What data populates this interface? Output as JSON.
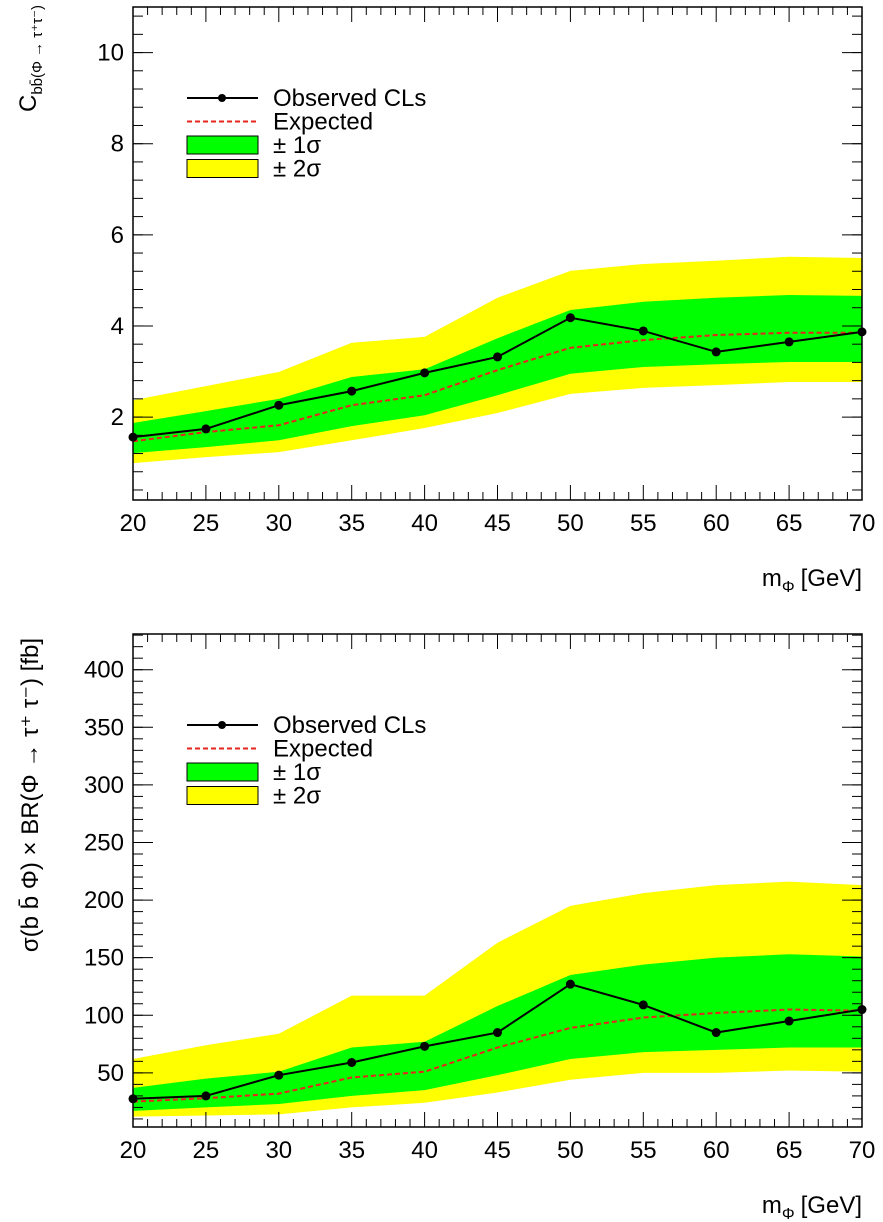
{
  "chart_data": [
    {
      "type": "line",
      "y_label": {
        "main": "C",
        "sub": "bb̄(Φ → τ⁺τ⁻)"
      },
      "x_label": {
        "main": "m",
        "sub": "Φ",
        "unit": "[GeV]"
      },
      "x": [
        20,
        25,
        30,
        35,
        40,
        45,
        50,
        55,
        60,
        65,
        70
      ],
      "xlim": [
        20,
        70
      ],
      "xticks": [
        20,
        25,
        30,
        35,
        40,
        45,
        50,
        55,
        60,
        65,
        70
      ],
      "ylim": [
        0.18,
        11.0
      ],
      "yticks": [
        2,
        4,
        6,
        8,
        10
      ],
      "series": [
        {
          "name": "Observed CLs",
          "color": "#000000",
          "values": [
            1.56,
            1.74,
            2.26,
            2.57,
            2.97,
            3.32,
            4.18,
            3.89,
            3.43,
            3.65,
            3.87
          ]
        },
        {
          "name": "Expected",
          "color": "#e8241f",
          "values": [
            1.47,
            1.67,
            1.82,
            2.26,
            2.48,
            3.03,
            3.52,
            3.69,
            3.8,
            3.85,
            3.85
          ]
        },
        {
          "name": "± 1σ",
          "color": "#00ff00",
          "low": [
            1.21,
            1.34,
            1.49,
            1.8,
            2.04,
            2.48,
            2.95,
            3.1,
            3.16,
            3.21,
            3.21
          ],
          "high": [
            1.87,
            2.13,
            2.4,
            2.88,
            3.05,
            3.73,
            4.35,
            4.53,
            4.62,
            4.68,
            4.66
          ]
        },
        {
          "name": "± 2σ",
          "color": "#ffff00",
          "low": [
            0.99,
            1.12,
            1.23,
            1.49,
            1.76,
            2.09,
            2.51,
            2.64,
            2.7,
            2.77,
            2.77
          ],
          "high": [
            2.37,
            2.68,
            2.99,
            3.63,
            3.76,
            4.62,
            5.21,
            5.36,
            5.43,
            5.52,
            5.49
          ]
        }
      ]
    },
    {
      "type": "line",
      "y_label": {
        "main": "σ(b b̄ Φ) × BR(Φ → τ⁺ τ⁻) [fb]"
      },
      "x_label": {
        "main": "m",
        "sub": "Φ",
        "unit": "[GeV]"
      },
      "x": [
        20,
        25,
        30,
        35,
        40,
        45,
        50,
        55,
        60,
        65,
        70
      ],
      "xlim": [
        20,
        70
      ],
      "xticks": [
        20,
        25,
        30,
        35,
        40,
        45,
        50,
        55,
        60,
        65,
        70
      ],
      "ylim": [
        3,
        431
      ],
      "yticks": [
        50,
        100,
        150,
        200,
        250,
        300,
        350,
        400
      ],
      "series": [
        {
          "name": "Observed CLs",
          "color": "#000000",
          "values": [
            27.5,
            30,
            48,
            59,
            73,
            85,
            127,
            109,
            85,
            95,
            105
          ]
        },
        {
          "name": "Expected",
          "color": "#e8241f",
          "values": [
            25,
            28,
            32,
            46,
            51,
            72,
            89,
            98,
            102,
            105,
            104
          ]
        },
        {
          "name": "± 1σ",
          "color": "#00ff00",
          "low": [
            17,
            20,
            23,
            30,
            35,
            48,
            62,
            68,
            70,
            72,
            72
          ],
          "high": [
            37,
            45,
            51,
            72,
            77,
            108,
            135,
            144,
            150,
            153,
            151
          ]
        },
        {
          "name": "± 2σ",
          "color": "#ffff00",
          "low": [
            12,
            13,
            14,
            20,
            24,
            33,
            44,
            50,
            50,
            52,
            51
          ],
          "high": [
            62,
            74,
            84,
            117,
            117,
            163,
            195,
            206,
            213,
            216,
            213
          ]
        }
      ]
    }
  ]
}
